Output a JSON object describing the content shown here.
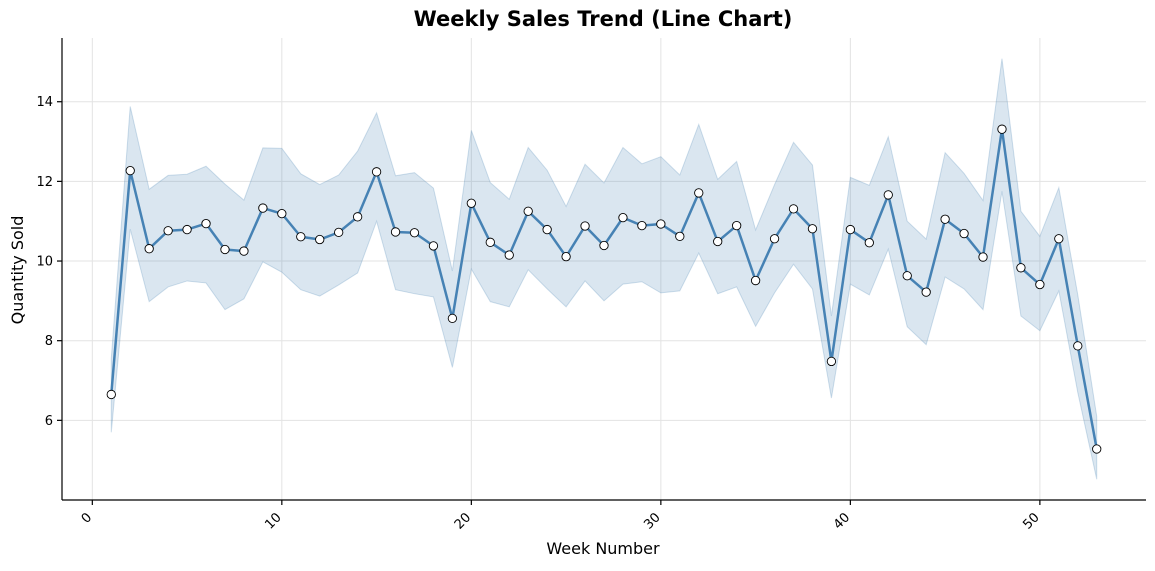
{
  "chart_data": {
    "type": "line",
    "title": "Weekly Sales Trend (Line Chart)",
    "xlabel": "Week Number",
    "ylabel": "Quantity Sold",
    "xlim": [
      -1.6,
      55.6
    ],
    "ylim": [
      4.0,
      15.6
    ],
    "xticks": [
      0,
      10,
      20,
      30,
      40,
      50
    ],
    "yticks": [
      6,
      8,
      10,
      12,
      14
    ],
    "grid": true,
    "colors": {
      "line": "#4682b4",
      "band": "#4682b4",
      "marker_fill": "#ffffff",
      "marker_edge": "#000000"
    },
    "series": [
      {
        "x": [
          1,
          2,
          3,
          4,
          5,
          6,
          7,
          8,
          9,
          10,
          11,
          12,
          13,
          14,
          15,
          16,
          17,
          18,
          19,
          20,
          21,
          22,
          23,
          24,
          25,
          26,
          27,
          28,
          29,
          30,
          31,
          32,
          33,
          34,
          35,
          36,
          37,
          38,
          39,
          40,
          41,
          42,
          43,
          44,
          45,
          46,
          47,
          48,
          49,
          50,
          51,
          52,
          53
        ],
        "y": [
          6.65,
          12.27,
          10.31,
          10.76,
          10.79,
          10.94,
          10.29,
          10.25,
          11.33,
          11.19,
          10.61,
          10.54,
          10.72,
          11.11,
          12.24,
          10.73,
          10.71,
          10.38,
          8.56,
          11.45,
          10.47,
          10.15,
          11.25,
          10.79,
          10.11,
          10.88,
          10.39,
          11.09,
          10.89,
          10.93,
          10.62,
          11.71,
          10.49,
          10.89,
          9.51,
          10.56,
          11.31,
          10.81,
          7.48,
          10.79,
          10.46,
          11.66,
          9.63,
          9.22,
          11.05,
          10.69,
          10.1,
          13.31,
          9.83,
          9.41,
          10.56,
          7.87,
          5.28
        ],
        "lower": [
          5.7,
          10.8,
          8.98,
          9.35,
          9.5,
          9.45,
          8.78,
          9.05,
          9.98,
          9.72,
          9.28,
          9.12,
          9.4,
          9.7,
          11.0,
          9.28,
          9.18,
          9.1,
          7.33,
          9.8,
          8.98,
          8.85,
          9.78,
          9.3,
          8.85,
          9.5,
          9.0,
          9.42,
          9.48,
          9.2,
          9.25,
          10.2,
          9.18,
          9.35,
          8.36,
          9.2,
          9.92,
          9.3,
          6.56,
          9.42,
          9.15,
          10.3,
          8.35,
          7.9,
          9.6,
          9.3,
          8.78,
          11.75,
          8.62,
          8.25,
          9.25,
          6.7,
          4.52
        ],
        "upper": [
          7.55,
          13.88,
          11.8,
          12.15,
          12.18,
          12.38,
          11.93,
          11.53,
          12.84,
          12.83,
          12.19,
          11.92,
          12.16,
          12.76,
          13.72,
          12.14,
          12.22,
          11.83,
          9.75,
          13.28,
          11.97,
          11.55,
          12.85,
          12.28,
          11.37,
          12.43,
          11.96,
          12.85,
          12.44,
          12.62,
          12.16,
          13.43,
          12.05,
          12.5,
          10.78,
          11.92,
          12.98,
          12.41,
          8.62,
          12.1,
          11.9,
          13.12,
          11.0,
          10.55,
          12.72,
          12.2,
          11.52,
          15.08,
          11.25,
          10.62,
          11.84,
          9.15,
          6.1
        ]
      }
    ]
  }
}
